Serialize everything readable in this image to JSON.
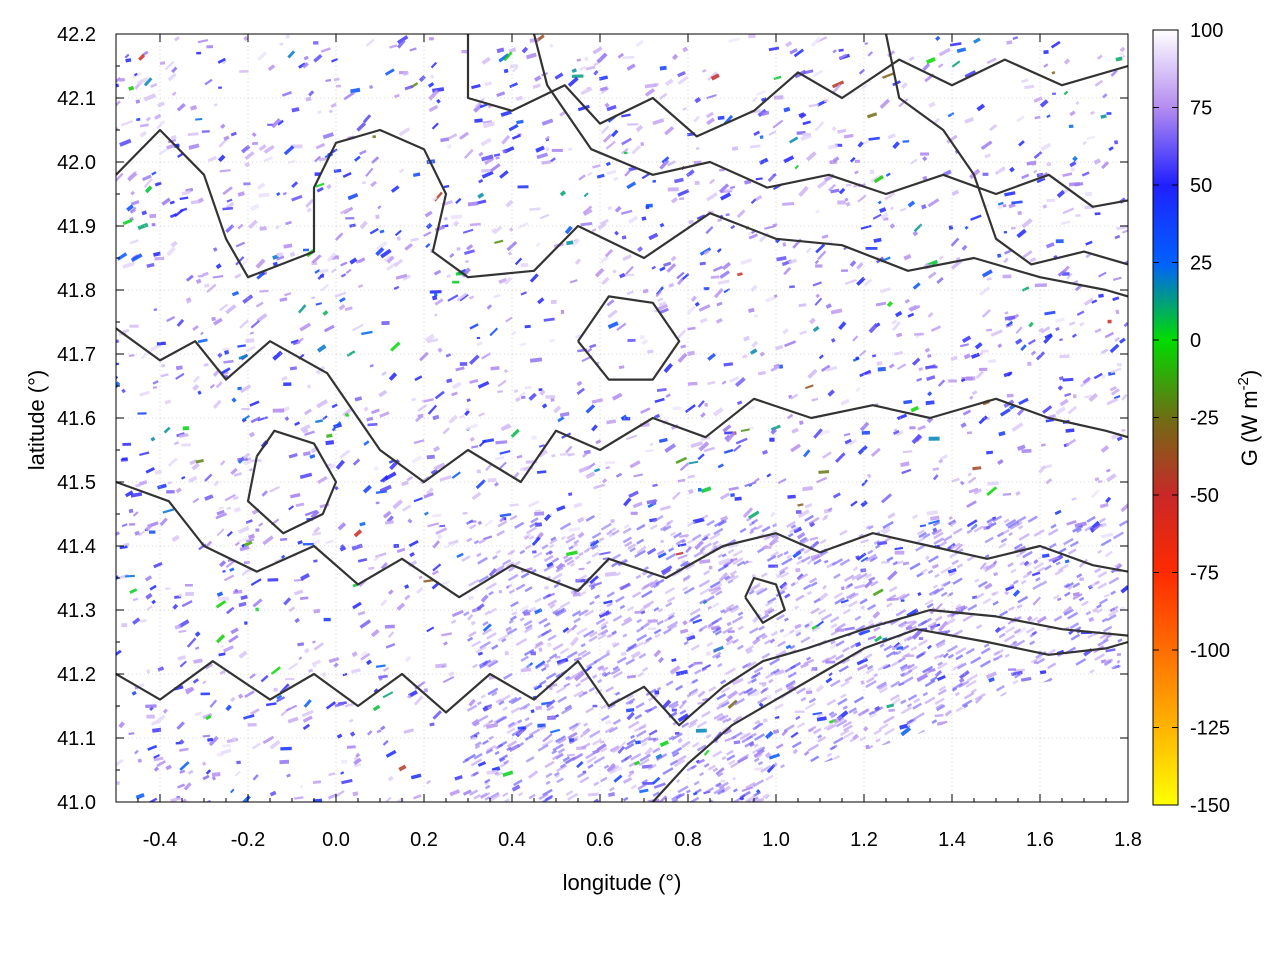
{
  "chart_data": {
    "type": "heatmap",
    "title": "",
    "xlabel": "longitude (°)",
    "ylabel": "latitude (°)",
    "colorbar_label_parts": [
      "G (W m",
      "-2",
      ")"
    ],
    "xlim": [
      -0.5,
      1.8
    ],
    "ylim": [
      41.0,
      42.2
    ],
    "x_ticks": [
      -0.4,
      -0.2,
      0.0,
      0.2,
      0.4,
      0.6,
      0.8,
      1.0,
      1.2,
      1.4,
      1.6,
      1.8
    ],
    "x_tick_labels": [
      "-0.4",
      "-0.2",
      "0.0",
      "0.2",
      "0.4",
      "0.6",
      "0.8",
      "1.0",
      "1.2",
      "1.4",
      "1.6",
      "1.8"
    ],
    "y_ticks": [
      41.0,
      41.1,
      41.2,
      41.3,
      41.4,
      41.5,
      41.6,
      41.7,
      41.8,
      41.9,
      42.0,
      42.1,
      42.2
    ],
    "y_tick_labels": [
      "41.0",
      "41.1",
      "41.2",
      "41.3",
      "41.4",
      "41.5",
      "41.6",
      "41.7",
      "41.8",
      "41.9",
      "42.0",
      "42.1",
      "42.2"
    ],
    "grid": true,
    "colorbar": {
      "range": [
        -150,
        100
      ],
      "ticks": [
        100,
        75,
        50,
        25,
        0,
        -25,
        -50,
        -75,
        -100,
        -125,
        -150
      ],
      "tick_labels": [
        "100",
        "75",
        "50",
        "25",
        "0",
        "-25",
        "-50",
        "-75",
        "-100",
        "-125",
        "-150"
      ],
      "stops": [
        {
          "value": 100,
          "color": "#ffffff"
        },
        {
          "value": 75,
          "color": "#b48cf0"
        },
        {
          "value": 50,
          "color": "#2020ff"
        },
        {
          "value": 25,
          "color": "#0060ff"
        },
        {
          "value": 0,
          "color": "#00dc00"
        },
        {
          "value": -25,
          "color": "#6e6e14"
        },
        {
          "value": -50,
          "color": "#c82828"
        },
        {
          "value": -75,
          "color": "#ff2a00"
        },
        {
          "value": -100,
          "color": "#ff6e00"
        },
        {
          "value": -125,
          "color": "#ffb400"
        },
        {
          "value": -150,
          "color": "#ffff00"
        }
      ]
    },
    "no_data_region": [
      [
        0.97,
        41.0
      ],
      [
        1.05,
        41.05
      ],
      [
        1.15,
        41.07
      ],
      [
        1.3,
        41.1
      ],
      [
        1.45,
        41.14
      ],
      [
        1.55,
        41.18
      ],
      [
        1.72,
        41.2
      ],
      [
        1.78,
        41.21
      ],
      [
        1.8,
        41.21
      ],
      [
        1.8,
        41.0
      ]
    ],
    "contours": [
      [
        [
          -0.5,
          41.98
        ],
        [
          -0.4,
          42.05
        ],
        [
          -0.3,
          41.98
        ],
        [
          -0.25,
          41.88
        ],
        [
          -0.2,
          41.82
        ],
        [
          -0.05,
          41.86
        ],
        [
          -0.05,
          41.96
        ],
        [
          0.0,
          42.03
        ],
        [
          0.1,
          42.05
        ],
        [
          0.2,
          42.02
        ],
        [
          0.25,
          41.95
        ],
        [
          0.22,
          41.86
        ],
        [
          0.3,
          41.82
        ],
        [
          0.45,
          41.83
        ],
        [
          0.55,
          41.9
        ],
        [
          0.7,
          41.85
        ],
        [
          0.85,
          41.92
        ],
        [
          1.0,
          41.88
        ],
        [
          1.15,
          41.87
        ],
        [
          1.3,
          41.83
        ],
        [
          1.45,
          41.85
        ],
        [
          1.6,
          41.82
        ],
        [
          1.75,
          41.8
        ],
        [
          1.8,
          41.79
        ]
      ],
      [
        [
          -0.5,
          41.74
        ],
        [
          -0.4,
          41.69
        ],
        [
          -0.32,
          41.72
        ],
        [
          -0.25,
          41.66
        ],
        [
          -0.15,
          41.72
        ],
        [
          -0.02,
          41.67
        ],
        [
          0.05,
          41.6
        ],
        [
          0.1,
          41.55
        ],
        [
          0.2,
          41.5
        ],
        [
          0.3,
          41.55
        ],
        [
          0.42,
          41.5
        ],
        [
          0.5,
          41.58
        ],
        [
          0.6,
          41.55
        ],
        [
          0.72,
          41.6
        ],
        [
          0.84,
          41.57
        ],
        [
          0.95,
          41.63
        ],
        [
          1.08,
          41.6
        ],
        [
          1.22,
          41.62
        ],
        [
          1.35,
          41.6
        ],
        [
          1.5,
          41.63
        ],
        [
          1.62,
          41.6
        ],
        [
          1.75,
          41.58
        ],
        [
          1.8,
          41.57
        ]
      ],
      [
        [
          -0.5,
          41.5
        ],
        [
          -0.38,
          41.47
        ],
        [
          -0.3,
          41.4
        ],
        [
          -0.18,
          41.36
        ],
        [
          -0.05,
          41.4
        ],
        [
          0.05,
          41.34
        ],
        [
          0.15,
          41.38
        ],
        [
          0.28,
          41.32
        ],
        [
          0.4,
          41.37
        ],
        [
          0.55,
          41.33
        ],
        [
          0.62,
          41.38
        ],
        [
          0.75,
          41.35
        ],
        [
          0.88,
          41.4
        ],
        [
          1.0,
          41.42
        ],
        [
          1.1,
          41.39
        ],
        [
          1.22,
          41.42
        ],
        [
          1.35,
          41.4
        ],
        [
          1.48,
          41.38
        ],
        [
          1.6,
          41.4
        ],
        [
          1.72,
          41.37
        ],
        [
          1.8,
          41.36
        ]
      ],
      [
        [
          -0.5,
          41.2
        ],
        [
          -0.4,
          41.16
        ],
        [
          -0.28,
          41.22
        ],
        [
          -0.15,
          41.16
        ],
        [
          -0.05,
          41.2
        ],
        [
          0.05,
          41.15
        ],
        [
          0.15,
          41.2
        ],
        [
          0.25,
          41.14
        ],
        [
          0.35,
          41.2
        ],
        [
          0.45,
          41.16
        ],
        [
          0.55,
          41.22
        ],
        [
          0.62,
          41.15
        ],
        [
          0.7,
          41.18
        ],
        [
          0.78,
          41.12
        ],
        [
          0.88,
          41.18
        ],
        [
          0.97,
          41.22
        ],
        [
          1.07,
          41.24
        ],
        [
          1.2,
          41.27
        ],
        [
          1.35,
          41.3
        ],
        [
          1.5,
          41.29
        ],
        [
          1.65,
          41.27
        ],
        [
          1.8,
          41.26
        ]
      ],
      [
        [
          0.72,
          41.0
        ],
        [
          0.8,
          41.06
        ],
        [
          0.9,
          41.12
        ],
        [
          1.0,
          41.16
        ],
        [
          1.1,
          41.2
        ],
        [
          1.2,
          41.24
        ],
        [
          1.32,
          41.27
        ],
        [
          1.48,
          41.25
        ],
        [
          1.62,
          41.23
        ],
        [
          1.75,
          41.24
        ],
        [
          1.8,
          41.25
        ]
      ],
      [
        [
          0.3,
          42.2
        ],
        [
          0.3,
          42.1
        ],
        [
          0.4,
          42.08
        ],
        [
          0.52,
          42.12
        ],
        [
          0.6,
          42.06
        ],
        [
          0.72,
          42.1
        ],
        [
          0.82,
          42.04
        ],
        [
          0.95,
          42.08
        ],
        [
          1.05,
          42.14
        ],
        [
          1.15,
          42.1
        ],
        [
          1.28,
          42.16
        ],
        [
          1.4,
          42.12
        ],
        [
          1.52,
          42.16
        ],
        [
          1.65,
          42.12
        ],
        [
          1.8,
          42.15
        ]
      ],
      [
        [
          0.45,
          42.2
        ],
        [
          0.48,
          42.12
        ],
        [
          0.58,
          42.02
        ],
        [
          0.72,
          41.98
        ],
        [
          0.85,
          42.0
        ],
        [
          0.98,
          41.96
        ],
        [
          1.12,
          41.98
        ],
        [
          1.25,
          41.95
        ],
        [
          1.38,
          41.98
        ],
        [
          1.5,
          41.95
        ],
        [
          1.62,
          41.98
        ],
        [
          1.72,
          41.93
        ],
        [
          1.8,
          41.94
        ]
      ],
      [
        [
          1.25,
          42.2
        ],
        [
          1.28,
          42.1
        ],
        [
          1.38,
          42.05
        ],
        [
          1.45,
          41.98
        ],
        [
          1.5,
          41.88
        ],
        [
          1.58,
          41.84
        ],
        [
          1.7,
          41.86
        ],
        [
          1.8,
          41.84
        ]
      ],
      [
        [
          -0.18,
          41.54
        ],
        [
          -0.2,
          41.47
        ],
        [
          -0.12,
          41.42
        ],
        [
          -0.03,
          41.45
        ],
        [
          0.0,
          41.5
        ],
        [
          -0.05,
          41.56
        ],
        [
          -0.14,
          41.58
        ],
        [
          -0.18,
          41.54
        ]
      ],
      [
        [
          0.55,
          41.72
        ],
        [
          0.62,
          41.66
        ],
        [
          0.72,
          41.66
        ],
        [
          0.78,
          41.72
        ],
        [
          0.72,
          41.78
        ],
        [
          0.62,
          41.79
        ],
        [
          0.55,
          41.72
        ]
      ],
      [
        [
          0.93,
          41.32
        ],
        [
          0.97,
          41.28
        ],
        [
          1.02,
          41.3
        ],
        [
          1.0,
          41.34
        ],
        [
          0.95,
          41.35
        ],
        [
          0.93,
          41.32
        ]
      ]
    ]
  }
}
